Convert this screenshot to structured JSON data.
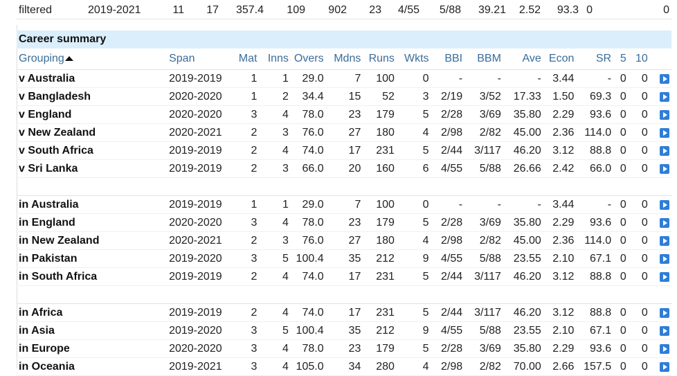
{
  "filtered_row": [
    "filtered",
    "2019-2021",
    "11",
    "17",
    "357.4",
    "109",
    "902",
    "23",
    "4/55",
    "5/88",
    "39.21",
    "2.52",
    "93.3",
    "0",
    "0"
  ],
  "career_summary": {
    "title": "Career summary",
    "headers": [
      "Grouping",
      "Span",
      "Mat",
      "Inns",
      "Overs",
      "Mdns",
      "Runs",
      "Wkts",
      "BBI",
      "BBM",
      "Ave",
      "Econ",
      "SR",
      "5",
      "10"
    ],
    "groups": [
      [
        [
          "v Australia",
          "2019-2019",
          "1",
          "1",
          "29.0",
          "7",
          "100",
          "0",
          "-",
          "-",
          "-",
          "3.44",
          "-",
          "0",
          "0"
        ],
        [
          "v Bangladesh",
          "2020-2020",
          "1",
          "2",
          "34.4",
          "15",
          "52",
          "3",
          "2/19",
          "3/52",
          "17.33",
          "1.50",
          "69.3",
          "0",
          "0"
        ],
        [
          "v England",
          "2020-2020",
          "3",
          "4",
          "78.0",
          "23",
          "179",
          "5",
          "2/28",
          "3/69",
          "35.80",
          "2.29",
          "93.6",
          "0",
          "0"
        ],
        [
          "v New Zealand",
          "2020-2021",
          "2",
          "3",
          "76.0",
          "27",
          "180",
          "4",
          "2/98",
          "2/82",
          "45.00",
          "2.36",
          "114.0",
          "0",
          "0"
        ],
        [
          "v South Africa",
          "2019-2019",
          "2",
          "4",
          "74.0",
          "17",
          "231",
          "5",
          "2/44",
          "3/117",
          "46.20",
          "3.12",
          "88.8",
          "0",
          "0"
        ],
        [
          "v Sri Lanka",
          "2019-2019",
          "2",
          "3",
          "66.0",
          "20",
          "160",
          "6",
          "4/55",
          "5/88",
          "26.66",
          "2.42",
          "66.0",
          "0",
          "0"
        ]
      ],
      [
        [
          "in Australia",
          "2019-2019",
          "1",
          "1",
          "29.0",
          "7",
          "100",
          "0",
          "-",
          "-",
          "-",
          "3.44",
          "-",
          "0",
          "0"
        ],
        [
          "in England",
          "2020-2020",
          "3",
          "4",
          "78.0",
          "23",
          "179",
          "5",
          "2/28",
          "3/69",
          "35.80",
          "2.29",
          "93.6",
          "0",
          "0"
        ],
        [
          "in New Zealand",
          "2020-2021",
          "2",
          "3",
          "76.0",
          "27",
          "180",
          "4",
          "2/98",
          "2/82",
          "45.00",
          "2.36",
          "114.0",
          "0",
          "0"
        ],
        [
          "in Pakistan",
          "2019-2020",
          "3",
          "5",
          "100.4",
          "35",
          "212",
          "9",
          "4/55",
          "5/88",
          "23.55",
          "2.10",
          "67.1",
          "0",
          "0"
        ],
        [
          "in South Africa",
          "2019-2019",
          "2",
          "4",
          "74.0",
          "17",
          "231",
          "5",
          "2/44",
          "3/117",
          "46.20",
          "3.12",
          "88.8",
          "0",
          "0"
        ]
      ],
      [
        [
          "in Africa",
          "2019-2019",
          "2",
          "4",
          "74.0",
          "17",
          "231",
          "5",
          "2/44",
          "3/117",
          "46.20",
          "3.12",
          "88.8",
          "0",
          "0"
        ],
        [
          "in Asia",
          "2019-2020",
          "3",
          "5",
          "100.4",
          "35",
          "212",
          "9",
          "4/55",
          "5/88",
          "23.55",
          "2.10",
          "67.1",
          "0",
          "0"
        ],
        [
          "in Europe",
          "2020-2020",
          "3",
          "4",
          "78.0",
          "23",
          "179",
          "5",
          "2/28",
          "3/69",
          "35.80",
          "2.29",
          "93.6",
          "0",
          "0"
        ],
        [
          "in Oceania",
          "2019-2021",
          "3",
          "4",
          "105.0",
          "34",
          "280",
          "4",
          "2/98",
          "2/82",
          "70.00",
          "2.66",
          "157.5",
          "0",
          "0"
        ]
      ]
    ]
  },
  "colors": {
    "header_text": "#3a6d9a",
    "title_bg": "#dbeefb",
    "button": "#2f7ed8"
  },
  "icons": {
    "sort": "sort-ascending-icon",
    "row_action": "play-arrow-icon"
  }
}
